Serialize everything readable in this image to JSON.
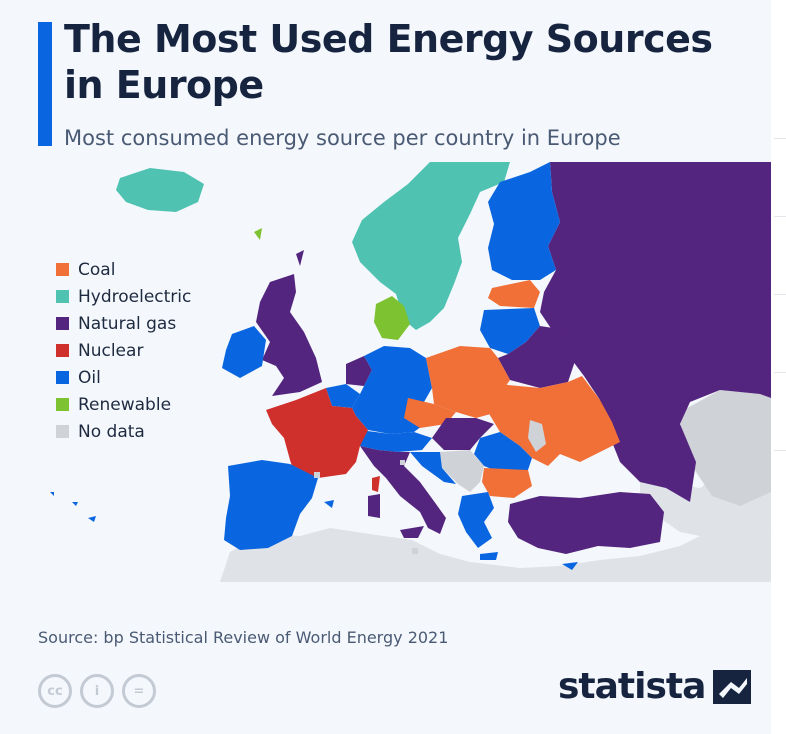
{
  "header": {
    "title": "The Most Used Energy Sources in Europe",
    "subtitle": "Most consumed energy source per country in Europe"
  },
  "legend": [
    {
      "label": "Coal",
      "color": "#f07038"
    },
    {
      "label": "Hydroelectric",
      "color": "#4fc2b2"
    },
    {
      "label": "Natural gas",
      "color": "#54257f"
    },
    {
      "label": "Nuclear",
      "color": "#d0302b"
    },
    {
      "label": "Oil",
      "color": "#0a66e0"
    },
    {
      "label": "Renewable",
      "color": "#7cc231"
    },
    {
      "label": "No data",
      "color": "#cfd3d8"
    }
  ],
  "countries": {
    "Iceland": "Hydroelectric",
    "Norway": "Hydroelectric",
    "Sweden": "Hydroelectric",
    "Finland": "Oil",
    "Estonia": "Coal",
    "Latvia": "Oil",
    "Lithuania": "Oil",
    "Russia": "Natural gas",
    "Belarus": "Natural gas",
    "Ukraine": "Coal",
    "Moldova": "No data",
    "United Kingdom": "Natural gas",
    "Ireland": "Oil",
    "Denmark": "Renewable",
    "Netherlands": "Natural gas",
    "Belgium": "Oil",
    "Luxembourg": "Oil",
    "Germany": "Oil",
    "Poland": "Coal",
    "Czechia": "Coal",
    "Slovakia": "Natural gas",
    "Hungary": "Natural gas",
    "Austria": "Oil",
    "Switzerland": "Oil",
    "France": "Nuclear",
    "Spain": "Oil",
    "Portugal": "Oil",
    "Italy": "Natural gas",
    "Slovenia": "Oil",
    "Croatia": "Oil",
    "Romania": "Oil",
    "Bulgaria": "Coal",
    "Greece": "Oil",
    "North Macedonia": "Oil",
    "Turkey": "Natural gas",
    "Serbia": "No data",
    "Bosnia and Herzegovina": "No data",
    "Albania": "No data",
    "Montenegro": "No data",
    "Cyprus": "Oil",
    "Corsica": "Nuclear",
    "Sardinia": "Natural gas",
    "Sicily": "Natural gas"
  },
  "source": "Source: bp Statistical Review of World Energy 2021",
  "brand": "statista",
  "license_icons": [
    "cc",
    "i",
    "="
  ]
}
